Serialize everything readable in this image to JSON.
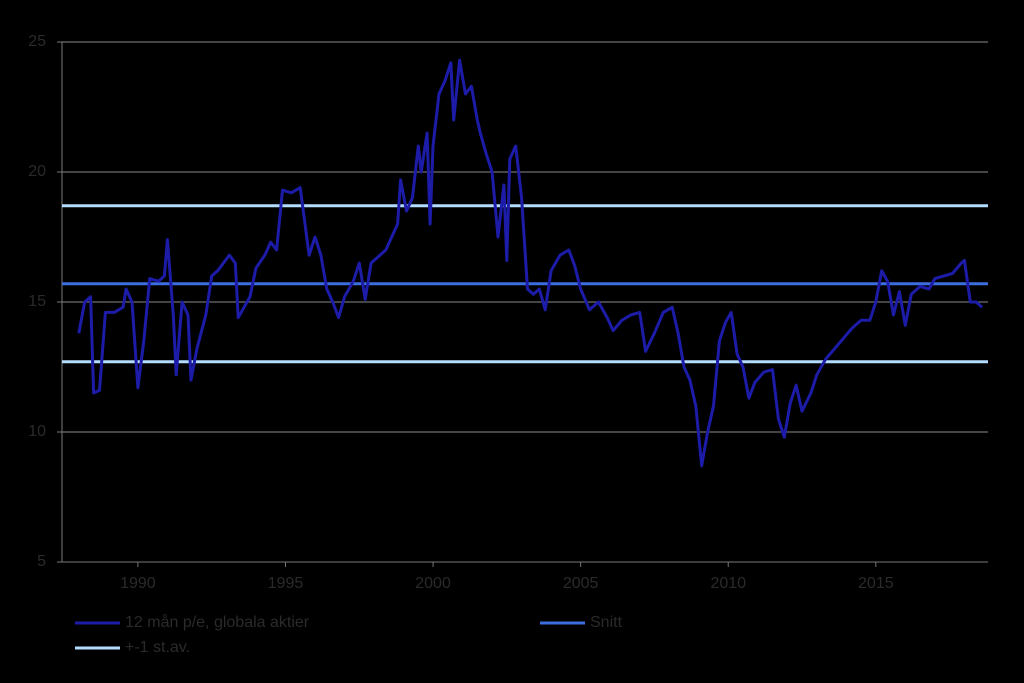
{
  "chart_data": {
    "type": "line",
    "xlim": [
      1987.43,
      2018.8
    ],
    "xticks": [
      1990,
      1995,
      2000,
      2005,
      2010,
      2015
    ],
    "ylim": [
      5,
      25
    ],
    "yticks": [
      5,
      10,
      15,
      20,
      25
    ],
    "grid": true,
    "legend": "bottom",
    "series": [
      {
        "name": "12 mån p/e, globala aktier",
        "color": "#1c1ca8",
        "x": [
          1988.0,
          1988.2,
          1988.4,
          1988.5,
          1988.7,
          1988.9,
          1989.2,
          1989.5,
          1989.6,
          1989.8,
          1990.0,
          1990.2,
          1990.4,
          1990.7,
          1990.9,
          1991.0,
          1991.2,
          1991.3,
          1991.5,
          1991.7,
          1991.8,
          1992.0,
          1992.3,
          1992.5,
          1992.7,
          1992.9,
          1993.1,
          1993.3,
          1993.4,
          1993.6,
          1993.8,
          1994.0,
          1994.3,
          1994.5,
          1994.7,
          1994.9,
          1995.2,
          1995.5,
          1995.8,
          1996.0,
          1996.2,
          1996.4,
          1996.6,
          1996.8,
          1997.0,
          1997.3,
          1997.5,
          1997.7,
          1997.9,
          1998.2,
          1998.4,
          1998.6,
          1998.8,
          1998.9,
          1999.1,
          1999.3,
          1999.5,
          1999.6,
          1999.8,
          1999.9,
          2000.0,
          2000.2,
          2000.4,
          2000.6,
          2000.7,
          2000.9,
          2001.1,
          2001.3,
          2001.5,
          2001.6,
          2001.8,
          2002.0,
          2002.2,
          2002.4,
          2002.5,
          2002.6,
          2002.8,
          2003.0,
          2003.2,
          2003.4,
          2003.6,
          2003.8,
          2004.0,
          2004.3,
          2004.6,
          2004.8,
          2005.0,
          2005.3,
          2005.6,
          2005.9,
          2006.1,
          2006.4,
          2006.7,
          2007.0,
          2007.2,
          2007.5,
          2007.8,
          2008.1,
          2008.3,
          2008.5,
          2008.7,
          2008.9,
          2009.1,
          2009.3,
          2009.5,
          2009.7,
          2009.9,
          2010.1,
          2010.3,
          2010.5,
          2010.7,
          2010.9,
          2011.2,
          2011.5,
          2011.7,
          2011.9,
          2012.1,
          2012.3,
          2012.5,
          2012.8,
          2013.0,
          2013.3,
          2013.6,
          2013.9,
          2014.2,
          2014.5,
          2014.8,
          2015.0,
          2015.2,
          2015.4,
          2015.6,
          2015.8,
          2016.0,
          2016.2,
          2016.5,
          2016.8,
          2017.0,
          2017.3,
          2017.6,
          2017.9,
          2018.0,
          2018.2,
          2018.4,
          2018.6
        ],
        "values": [
          13.8,
          15.0,
          15.2,
          11.5,
          11.6,
          14.6,
          14.6,
          14.8,
          15.5,
          15.0,
          11.7,
          13.5,
          15.9,
          15.8,
          16.0,
          17.4,
          14.5,
          12.2,
          15.0,
          14.5,
          12.0,
          13.2,
          14.5,
          16.0,
          16.2,
          16.5,
          16.8,
          16.5,
          14.4,
          14.8,
          15.2,
          16.3,
          16.8,
          17.3,
          17.0,
          19.3,
          19.2,
          19.4,
          16.8,
          17.5,
          16.8,
          15.5,
          15.0,
          14.4,
          15.2,
          15.8,
          16.5,
          15.1,
          16.5,
          16.8,
          17.0,
          17.5,
          18.0,
          19.7,
          18.5,
          19.0,
          21.0,
          20.0,
          21.5,
          18.0,
          21.0,
          23.0,
          23.5,
          24.2,
          22.0,
          24.3,
          23.0,
          23.3,
          22.0,
          21.5,
          20.7,
          20.0,
          17.5,
          19.5,
          16.6,
          20.5,
          21.0,
          19.0,
          15.5,
          15.3,
          15.5,
          14.7,
          16.2,
          16.8,
          17.0,
          16.4,
          15.5,
          14.7,
          15.0,
          14.4,
          13.9,
          14.3,
          14.5,
          14.6,
          13.1,
          13.8,
          14.6,
          14.8,
          13.8,
          12.5,
          12.0,
          11.0,
          8.7,
          10.0,
          11.0,
          13.5,
          14.2,
          14.6,
          13.0,
          12.5,
          11.3,
          11.9,
          12.3,
          12.4,
          10.5,
          9.8,
          11.1,
          11.8,
          10.8,
          11.5,
          12.2,
          12.8,
          13.2,
          13.6,
          14.0,
          14.3,
          14.3,
          15.0,
          16.2,
          15.8,
          14.5,
          15.4,
          14.1,
          15.3,
          15.6,
          15.5,
          15.9,
          16.0,
          16.1,
          16.5,
          16.6,
          15.0,
          15.0,
          14.8
        ]
      }
    ],
    "reference_lines": [
      {
        "name": "Snitt",
        "color": "#3c6ee0",
        "values": [
          15.7
        ]
      },
      {
        "name": "+-1 st.av.",
        "color": "#b4dcff",
        "values": [
          18.7,
          12.7
        ]
      }
    ]
  }
}
